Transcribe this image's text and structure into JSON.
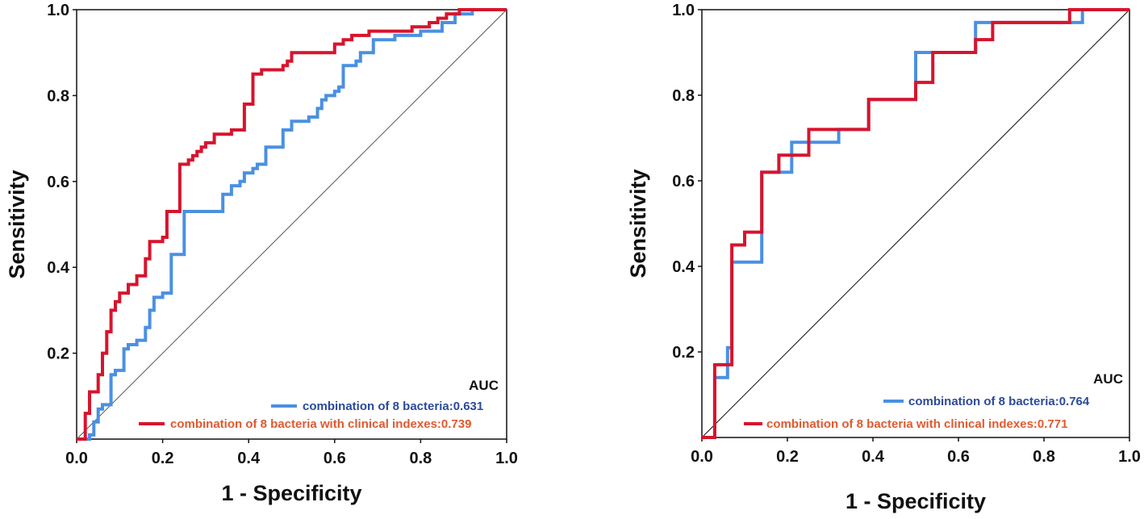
{
  "chart_data": [
    {
      "type": "line",
      "title": "",
      "xlabel": "1 - Specificity",
      "ylabel": "Sensitivity",
      "xlim": [
        0,
        1
      ],
      "ylim": [
        0,
        1
      ],
      "x_ticks": [
        "0.0",
        "0.2",
        "0.4",
        "0.6",
        "0.8",
        "1.0"
      ],
      "y_ticks": [
        "0.2",
        "0.4",
        "0.6",
        "0.8",
        "1.0"
      ],
      "legend_title": "AUC",
      "diagonal_color": "#555555",
      "series": [
        {
          "name": "combination of 8 bacteria:0.631",
          "color": "#4a90e2",
          "text_color": "#2b4a9a",
          "x": [
            0,
            0.03,
            0.03,
            0.04,
            0.04,
            0.05,
            0.05,
            0.06,
            0.06,
            0.08,
            0.08,
            0.09,
            0.09,
            0.11,
            0.11,
            0.12,
            0.12,
            0.14,
            0.14,
            0.16,
            0.16,
            0.17,
            0.17,
            0.18,
            0.18,
            0.2,
            0.2,
            0.22,
            0.22,
            0.25,
            0.25,
            0.34,
            0.34,
            0.36,
            0.36,
            0.38,
            0.38,
            0.39,
            0.39,
            0.41,
            0.41,
            0.42,
            0.42,
            0.44,
            0.44,
            0.48,
            0.48,
            0.5,
            0.5,
            0.54,
            0.54,
            0.56,
            0.56,
            0.57,
            0.57,
            0.58,
            0.58,
            0.6,
            0.6,
            0.61,
            0.61,
            0.62,
            0.62,
            0.65,
            0.65,
            0.66,
            0.66,
            0.69,
            0.69,
            0.74,
            0.74,
            0.8,
            0.8,
            0.85,
            0.85,
            0.88,
            0.88,
            0.92,
            0.92,
            1.0
          ],
          "y": [
            0,
            0,
            0.01,
            0.01,
            0.04,
            0.04,
            0.07,
            0.07,
            0.08,
            0.08,
            0.15,
            0.15,
            0.16,
            0.16,
            0.21,
            0.21,
            0.22,
            0.22,
            0.23,
            0.23,
            0.26,
            0.26,
            0.3,
            0.3,
            0.33,
            0.33,
            0.34,
            0.34,
            0.43,
            0.43,
            0.53,
            0.53,
            0.57,
            0.57,
            0.59,
            0.59,
            0.6,
            0.6,
            0.62,
            0.62,
            0.63,
            0.63,
            0.64,
            0.64,
            0.68,
            0.68,
            0.72,
            0.72,
            0.74,
            0.74,
            0.75,
            0.75,
            0.77,
            0.77,
            0.79,
            0.79,
            0.8,
            0.8,
            0.81,
            0.81,
            0.82,
            0.82,
            0.87,
            0.87,
            0.88,
            0.88,
            0.9,
            0.9,
            0.93,
            0.93,
            0.94,
            0.94,
            0.95,
            0.95,
            0.97,
            0.97,
            0.99,
            0.99,
            1.0,
            1.0
          ]
        },
        {
          "name": "combination of 8 bacteria with clinical indexes:0.739",
          "color": "#d7142d",
          "text_color": "#e05a30",
          "x": [
            0,
            0.02,
            0.02,
            0.03,
            0.03,
            0.05,
            0.05,
            0.06,
            0.06,
            0.07,
            0.07,
            0.08,
            0.08,
            0.09,
            0.09,
            0.1,
            0.1,
            0.12,
            0.12,
            0.14,
            0.14,
            0.16,
            0.16,
            0.17,
            0.17,
            0.2,
            0.2,
            0.21,
            0.21,
            0.24,
            0.24,
            0.26,
            0.26,
            0.27,
            0.27,
            0.28,
            0.28,
            0.29,
            0.29,
            0.3,
            0.3,
            0.32,
            0.32,
            0.36,
            0.36,
            0.39,
            0.39,
            0.41,
            0.41,
            0.43,
            0.43,
            0.48,
            0.48,
            0.49,
            0.49,
            0.5,
            0.5,
            0.6,
            0.6,
            0.62,
            0.62,
            0.64,
            0.64,
            0.68,
            0.68,
            0.78,
            0.78,
            0.82,
            0.82,
            0.84,
            0.84,
            0.86,
            0.86,
            0.89,
            0.89,
            0.91,
            0.91,
            0.93,
            0.93,
            1.0
          ],
          "y": [
            0,
            0,
            0.06,
            0.06,
            0.11,
            0.11,
            0.15,
            0.15,
            0.2,
            0.2,
            0.25,
            0.25,
            0.3,
            0.3,
            0.32,
            0.32,
            0.34,
            0.34,
            0.36,
            0.36,
            0.38,
            0.38,
            0.42,
            0.42,
            0.46,
            0.46,
            0.47,
            0.47,
            0.53,
            0.53,
            0.64,
            0.64,
            0.65,
            0.65,
            0.66,
            0.66,
            0.67,
            0.67,
            0.68,
            0.68,
            0.69,
            0.69,
            0.71,
            0.71,
            0.72,
            0.72,
            0.78,
            0.78,
            0.85,
            0.85,
            0.86,
            0.86,
            0.87,
            0.87,
            0.88,
            0.88,
            0.9,
            0.9,
            0.92,
            0.92,
            0.93,
            0.93,
            0.94,
            0.94,
            0.95,
            0.95,
            0.96,
            0.96,
            0.97,
            0.97,
            0.98,
            0.98,
            0.99,
            0.99,
            1.0,
            1.0,
            1.0,
            1.0,
            1.0,
            1.0
          ]
        }
      ]
    },
    {
      "type": "line",
      "title": "",
      "xlabel": "1 - Specificity",
      "ylabel": "Sensitivity",
      "xlim": [
        0,
        1
      ],
      "ylim": [
        0,
        1
      ],
      "x_ticks": [
        "0.0",
        "0.2",
        "0.4",
        "0.6",
        "0.8",
        "1.0"
      ],
      "y_ticks": [
        "0.2",
        "0.4",
        "0.6",
        "0.8",
        "1.0"
      ],
      "legend_title": "AUC",
      "diagonal_color": "#111111",
      "series": [
        {
          "name": "combination of 8 bacteria:0.764",
          "color": "#4a90e2",
          "text_color": "#2b4a9a",
          "x": [
            0,
            0.03,
            0.03,
            0.06,
            0.06,
            0.07,
            0.07,
            0.14,
            0.14,
            0.16,
            0.16,
            0.21,
            0.21,
            0.27,
            0.27,
            0.32,
            0.32,
            0.39,
            0.39,
            0.5,
            0.5,
            0.64,
            0.64,
            0.67,
            0.67,
            0.89,
            0.89,
            1.0
          ],
          "y": [
            0,
            0,
            0.14,
            0.14,
            0.21,
            0.21,
            0.41,
            0.41,
            0.62,
            0.62,
            0.62,
            0.62,
            0.69,
            0.69,
            0.69,
            0.69,
            0.72,
            0.72,
            0.79,
            0.79,
            0.9,
            0.9,
            0.97,
            0.97,
            0.97,
            0.97,
            1.0,
            1.0
          ]
        },
        {
          "name": "combination of 8 bacteria with clinical indexes:0.771",
          "color": "#d7142d",
          "text_color": "#e05a30",
          "x": [
            0,
            0.03,
            0.03,
            0.07,
            0.07,
            0.1,
            0.1,
            0.14,
            0.14,
            0.18,
            0.18,
            0.25,
            0.25,
            0.39,
            0.39,
            0.5,
            0.5,
            0.54,
            0.54,
            0.64,
            0.64,
            0.68,
            0.68,
            0.86,
            0.86,
            1.0
          ],
          "y": [
            0,
            0,
            0.17,
            0.17,
            0.45,
            0.45,
            0.48,
            0.48,
            0.62,
            0.62,
            0.66,
            0.66,
            0.72,
            0.72,
            0.79,
            0.79,
            0.83,
            0.83,
            0.9,
            0.9,
            0.93,
            0.93,
            0.97,
            0.97,
            1.0,
            1.0
          ]
        }
      ]
    }
  ]
}
